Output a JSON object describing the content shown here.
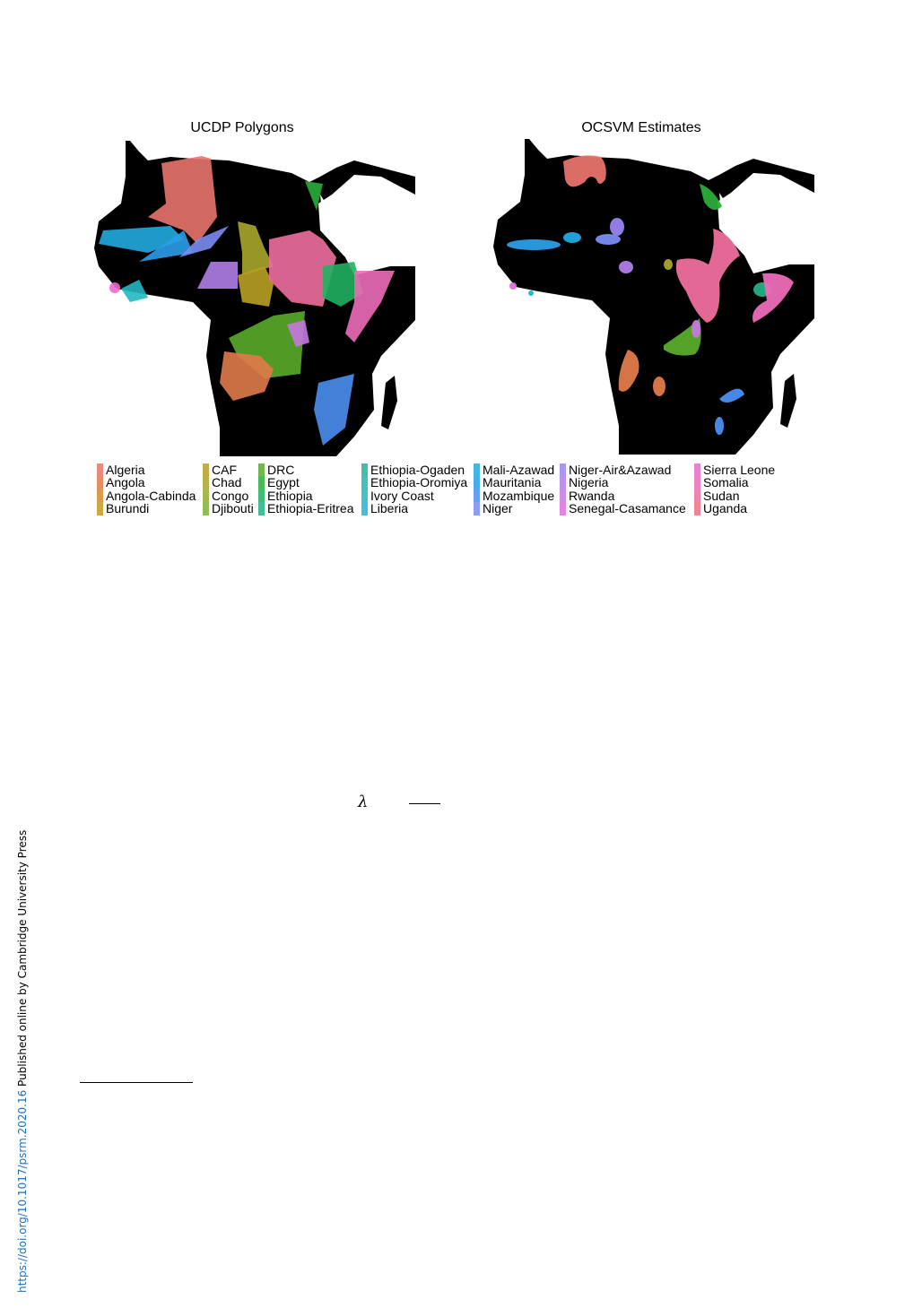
{
  "figure": {
    "panels": [
      {
        "title": "UCDP Polygons"
      },
      {
        "title": "OCSVM Estimates"
      }
    ],
    "legend": [
      [
        {
          "label": "Algeria",
          "color": "#e8736c"
        },
        {
          "label": "Angola",
          "color": "#e07a4a"
        },
        {
          "label": "Angola-Cabinda",
          "color": "#d48a2a"
        },
        {
          "label": "Burundi",
          "color": "#c49a22"
        }
      ],
      [
        {
          "label": "CAF",
          "color": "#b8a024"
        },
        {
          "label": "Chad",
          "color": "#a8a62a"
        },
        {
          "label": "Congo",
          "color": "#98aa30"
        },
        {
          "label": "Djibouti",
          "color": "#7fb03a"
        }
      ],
      [
        {
          "label": "DRC",
          "color": "#5aab2a"
        },
        {
          "label": "Egypt",
          "color": "#2aad3a"
        },
        {
          "label": "Ethiopia",
          "color": "#20b060"
        },
        {
          "label": "Ethiopia-Eritrea",
          "color": "#22b086"
        }
      ],
      [
        {
          "label": "Ethiopia-Ogaden",
          "color": "#22b39a"
        },
        {
          "label": "Ethiopia-Oromiya",
          "color": "#22b5ad"
        },
        {
          "label": "Ivory Coast",
          "color": "#22b7c0"
        },
        {
          "label": "Liberia",
          "color": "#22b4d0"
        }
      ],
      [
        {
          "label": "Mali-Azawad",
          "color": "#22aadf"
        },
        {
          "label": "Mauritania",
          "color": "#2b9ee8"
        },
        {
          "label": "Mozambique",
          "color": "#4a8ff0"
        },
        {
          "label": "Niger",
          "color": "#7a8cf2"
        }
      ],
      [
        {
          "label": "Niger-Air&Azawad",
          "color": "#9a84f0"
        },
        {
          "label": "Nigeria",
          "color": "#b07ee8"
        },
        {
          "label": "Rwanda",
          "color": "#c578e0"
        },
        {
          "label": "Senegal-Casamance",
          "color": "#da6fdc"
        }
      ],
      [
        {
          "label": "Sierra Leone",
          "color": "#e86ad0"
        },
        {
          "label": "Somalia",
          "color": "#ec6cb8"
        },
        {
          "label": "Sudan",
          "color": "#ee6e9e"
        },
        {
          "label": "Uganda",
          "color": "#ec7085"
        }
      ]
    ]
  },
  "math": {
    "symbol": "λ"
  },
  "sidebar": {
    "doi": "https://doi.org/10.1017/psrm.2020.16",
    "published": " Published online by Cambridge University Press"
  }
}
